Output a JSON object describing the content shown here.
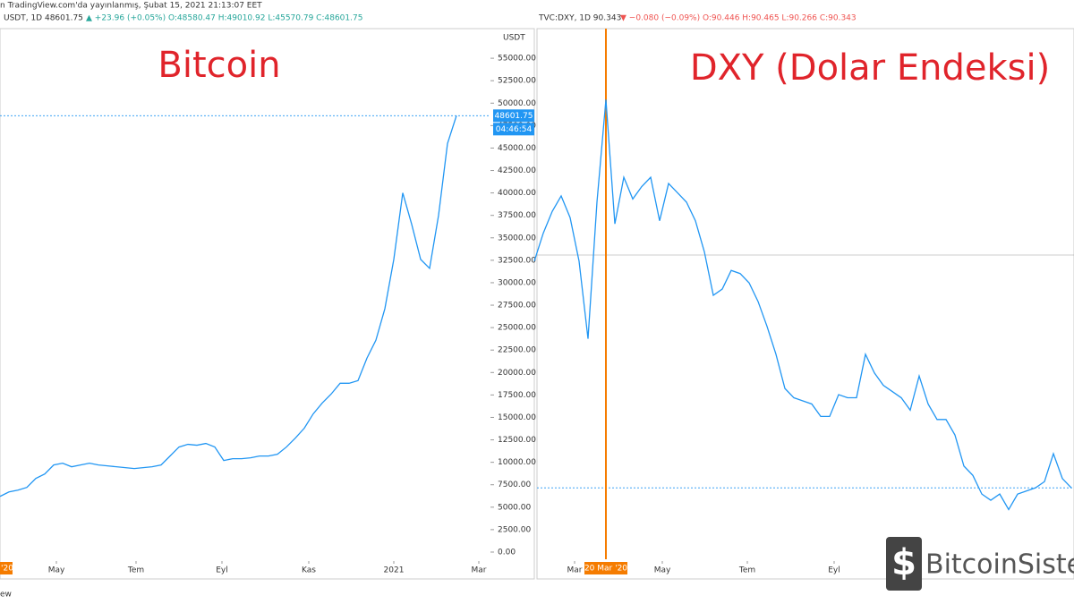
{
  "header": "n TradingView.com'da yayınlanmış, Şubat 15, 2021 21:13:07 EET",
  "footer": "ew",
  "watermark": "BitcoinSiste",
  "chart_data": [
    {
      "type": "line",
      "title": "Bitcoin",
      "symbol": "USDT, 1D 48601.75",
      "quote": "▲ +23.96 (+0.05%) O:48580.47 H:49010.92 L:45570.79 C:48601.75",
      "unit": "USDT",
      "color": "#2196f3",
      "grid": false,
      "price_label": 48601.75,
      "countdown": "04:46:54",
      "start_label": "'20",
      "values": [
        6200,
        6700,
        6900,
        7200,
        8200,
        8700,
        9700,
        9900,
        9500,
        9700,
        9900,
        9700,
        9600,
        9500,
        9400,
        9300,
        9400,
        9500,
        9700,
        10700,
        11700,
        12000,
        11900,
        12100,
        11700,
        10200,
        10400,
        10400,
        10500,
        10700,
        10700,
        10900,
        11700,
        12700,
        13800,
        15400,
        16600,
        17600,
        18800,
        18800,
        19100,
        21600,
        23600,
        27100,
        32600,
        40000,
        36500,
        32600,
        31600,
        37500,
        45500,
        48600
      ],
      "xlim": [
        0,
        54.8
      ],
      "xticks": [
        {
          "value": 6.3,
          "label": "May"
        },
        {
          "value": 15.2,
          "label": "Tem"
        },
        {
          "value": 24.8,
          "label": "Eyl"
        },
        {
          "value": 34.5,
          "label": "Kas"
        },
        {
          "value": 44,
          "label": "2021"
        },
        {
          "value": 53.5,
          "label": "Mar"
        }
      ],
      "ylim": [
        -800,
        58000
      ],
      "yticks": [
        {
          "value": 0,
          "label": "0.00"
        },
        {
          "value": 2500,
          "label": "2500.00"
        },
        {
          "value": 5000,
          "label": "5000.00"
        },
        {
          "value": 7500,
          "label": "7500.00"
        },
        {
          "value": 10000,
          "label": "10000.00"
        },
        {
          "value": 12500,
          "label": "12500.00"
        },
        {
          "value": 15000,
          "label": "15000.00"
        },
        {
          "value": 17500,
          "label": "17500.00"
        },
        {
          "value": 20000,
          "label": "20000.00"
        },
        {
          "value": 22500,
          "label": "22500.00"
        },
        {
          "value": 25000,
          "label": "25000.00"
        },
        {
          "value": 27500,
          "label": "27500.00"
        },
        {
          "value": 30000,
          "label": "30000.00"
        },
        {
          "value": 32500,
          "label": "32500.00"
        },
        {
          "value": 35000,
          "label": "35000.00"
        },
        {
          "value": 37500,
          "label": "37500.00"
        },
        {
          "value": 40000,
          "label": "40000.00"
        },
        {
          "value": 42500,
          "label": "42500.00"
        },
        {
          "value": 45000,
          "label": "45000.00"
        },
        {
          "value": 47500,
          "label": "47500.00"
        },
        {
          "value": 50000,
          "label": "50000.00"
        },
        {
          "value": 52500,
          "label": "52500.00"
        },
        {
          "value": 55000,
          "label": "55000.00"
        }
      ]
    },
    {
      "type": "line",
      "title": "DXY (Dolar Endeksi)",
      "symbol": "TVC:DXY, 1D 90.343",
      "quote": "▼ −0.080 (−0.09%) O:90.446 H:90.465 L:90.266 C:90.343",
      "color": "#2196f3",
      "grid": false,
      "marker": {
        "value": 8,
        "label": "20 Mar '20",
        "color": "#f57c00"
      },
      "values": [
        97.6,
        98.5,
        99.2,
        99.7,
        99.0,
        97.6,
        95.1,
        99.5,
        102.8,
        98.8,
        100.3,
        99.6,
        100.0,
        100.3,
        98.9,
        100.1,
        99.8,
        99.5,
        98.9,
        97.9,
        96.5,
        96.7,
        97.3,
        97.2,
        96.9,
        96.3,
        95.5,
        94.6,
        93.5,
        93.2,
        93.1,
        93.0,
        92.6,
        92.6,
        93.3,
        93.2,
        93.2,
        94.6,
        94.0,
        93.6,
        93.4,
        93.2,
        92.8,
        93.9,
        93.0,
        92.5,
        92.5,
        92.0,
        91.0,
        90.7,
        90.1,
        89.9,
        90.1,
        89.6,
        90.1,
        90.2,
        90.3,
        90.5,
        91.4,
        90.6,
        90.3
      ],
      "xlim": [
        0.3,
        60.3
      ],
      "xticks": [
        {
          "value": 4.5,
          "label": "Mar"
        },
        {
          "value": 14.3,
          "label": "May"
        },
        {
          "value": 23.8,
          "label": "Tem"
        },
        {
          "value": 33.5,
          "label": "Eyl"
        }
      ],
      "ylim": [
        88.0,
        105.0
      ]
    }
  ]
}
